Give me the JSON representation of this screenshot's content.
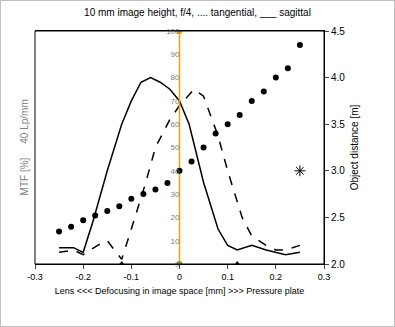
{
  "chart_data": {
    "type": "line",
    "title": "10 mm image height, f/4, .... tangential, ___ sagittal",
    "x_label": "Lens <<< Defocusing in image space [mm] >>> Pressure plate",
    "y_label": "MTF [%]     40 Lp/mm",
    "y2_label": "Object distance [m]",
    "xlim": [
      -0.3,
      0.3
    ],
    "xticks": [
      -0.3,
      -0.2,
      -0.1,
      0,
      0.1,
      0.2,
      0.3
    ],
    "ylim": [
      0,
      100
    ],
    "yticks": [
      0,
      10,
      20,
      30,
      40,
      50,
      60,
      70,
      80,
      90,
      100
    ],
    "y2lim": [
      2.0,
      4.5
    ],
    "y2ticks": [
      {
        "value": 2,
        "label": "2.0"
      },
      2.5,
      {
        "value": 3,
        "label": "3.0"
      },
      3.5,
      {
        "value": 4,
        "label": "4.0"
      },
      4.5
    ],
    "grid": false,
    "series": [
      {
        "type": "line",
        "color": "#000000",
        "line_style": "solid",
        "x": [
          -0.25,
          -0.22,
          -0.2,
          -0.18,
          -0.15,
          -0.12,
          -0.1,
          -0.08,
          -0.06,
          -0.04,
          -0.02,
          0,
          0.02,
          0.05,
          0.08,
          0.1,
          0.12,
          0.15,
          0.18,
          0.2,
          0.22,
          0.25
        ],
        "values": [
          7,
          7,
          5,
          18,
          40,
          60,
          70,
          78,
          80,
          78,
          75,
          70,
          60,
          35,
          15,
          8,
          6,
          8,
          6,
          5,
          4,
          5
        ]
      },
      {
        "type": "line",
        "color": "#000000",
        "line_style": "dash",
        "x": [
          -0.25,
          -0.22,
          -0.2,
          -0.17,
          -0.15,
          -0.12,
          -0.1,
          -0.07,
          -0.05,
          -0.02,
          0,
          0.03,
          0.05,
          0.08,
          0.1,
          0.13,
          0.15,
          0.18,
          0.2,
          0.22,
          0.25
        ],
        "values": [
          5,
          6,
          4,
          8,
          10,
          2,
          15,
          35,
          50,
          62,
          68,
          75,
          72,
          55,
          40,
          20,
          12,
          8,
          6,
          6,
          8
        ]
      },
      {
        "type": "scatter",
        "color": "#000000",
        "marker": "circle",
        "axis": "y2",
        "x": [
          -0.25,
          -0.225,
          -0.2,
          -0.175,
          -0.15,
          -0.125,
          -0.1,
          -0.075,
          -0.05,
          -0.025,
          0,
          0.025,
          0.05,
          0.075,
          0.1,
          0.125,
          0.15,
          0.175,
          0.2,
          0.225,
          0.25
        ],
        "values": [
          2.35,
          2.4,
          2.47,
          2.52,
          2.57,
          2.62,
          2.7,
          2.75,
          2.8,
          2.87,
          3.0,
          3.1,
          3.25,
          3.4,
          3.5,
          3.6,
          3.75,
          3.85,
          4.0,
          4.1,
          4.35
        ]
      },
      {
        "type": "scatter",
        "color": "#000000",
        "marker": "asterisk",
        "axis": "y2",
        "x": [
          0.25
        ],
        "values": [
          3.0
        ]
      },
      {
        "type": "scatter",
        "color": "#000000",
        "marker": "triangle",
        "x": [
          -0.12,
          0.12
        ],
        "values": [
          0,
          0
        ]
      },
      {
        "type": "line",
        "color": "#f4a300",
        "line_style": "solid",
        "marker": "circle",
        "colors": [
          "#6aa84f",
          "#f4a300"
        ],
        "x": [
          0,
          0
        ],
        "values": [
          0,
          100
        ]
      }
    ]
  }
}
